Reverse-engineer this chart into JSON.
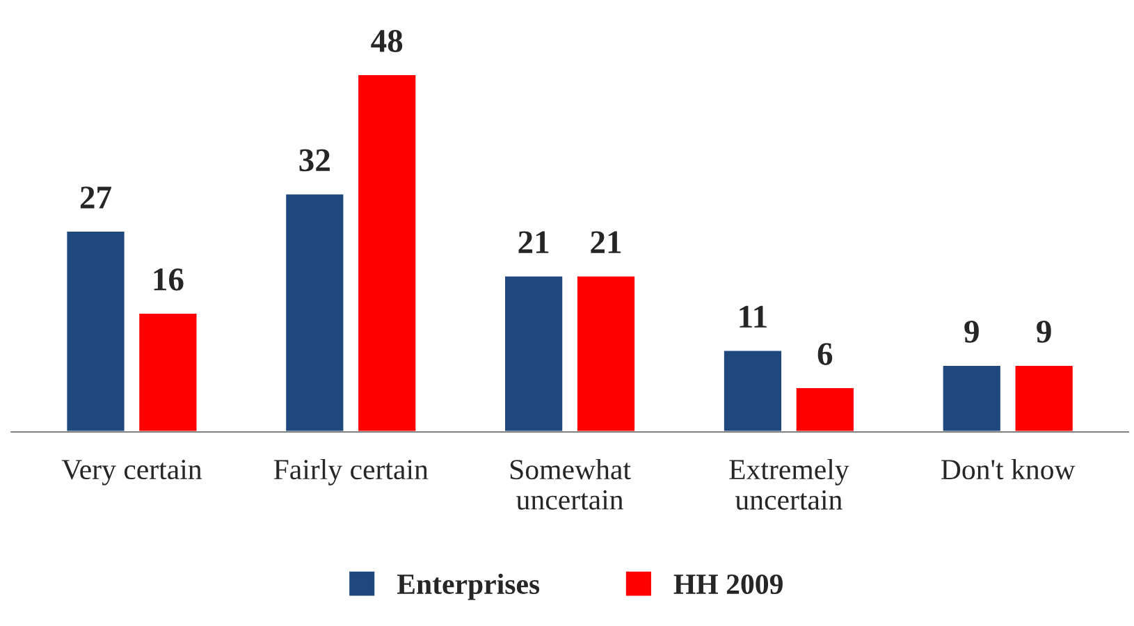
{
  "chart_data": {
    "type": "bar",
    "categories": [
      "Very certain",
      "Fairly certain",
      "Somewhat\nuncertain",
      "Extremely\nuncertain",
      "Don't know"
    ],
    "series": [
      {
        "name": "Enterprises",
        "color": "#1f497d",
        "values": [
          27,
          32,
          21,
          11,
          9
        ]
      },
      {
        "name": "HH 2009",
        "color": "#ff0000",
        "values": [
          16,
          48,
          21,
          6,
          9
        ]
      }
    ],
    "data_labels": true,
    "legend": "bottom",
    "grid": false
  }
}
